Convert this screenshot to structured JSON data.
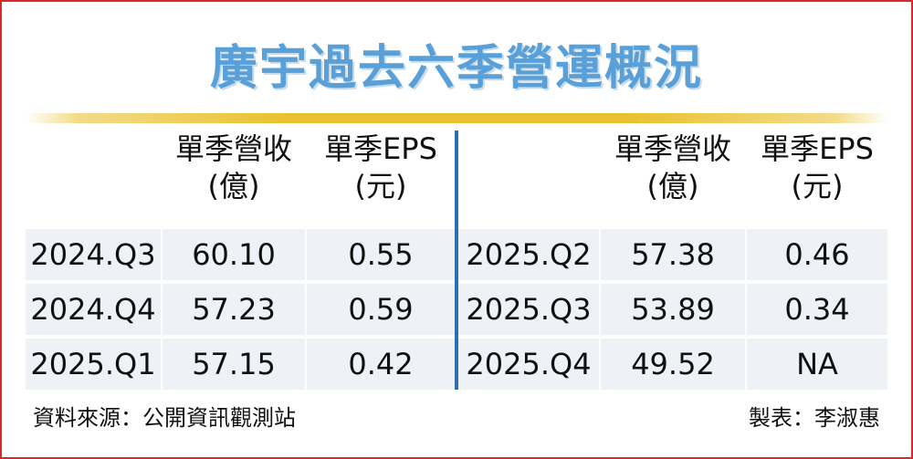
{
  "title": "廣宇過去六季營運概況",
  "headers": {
    "revenue_line1": "單季營收",
    "revenue_line2": "(億)",
    "eps_line1": "單季EPS",
    "eps_line2": "(元)"
  },
  "left_rows": [
    {
      "quarter": "2024.Q3",
      "revenue": "60.10",
      "eps": "0.55"
    },
    {
      "quarter": "2024.Q4",
      "revenue": "57.23",
      "eps": "0.59"
    },
    {
      "quarter": "2025.Q1",
      "revenue": "57.15",
      "eps": "0.42"
    }
  ],
  "right_rows": [
    {
      "quarter": "2025.Q2",
      "revenue": "57.38",
      "eps": "0.46"
    },
    {
      "quarter": "2025.Q3",
      "revenue": "53.89",
      "eps": "0.34"
    },
    {
      "quarter": "2025.Q4",
      "revenue": "49.52",
      "eps": "NA"
    }
  ],
  "footer": {
    "source": "資料來源：公開資訊觀測站",
    "credit": "製表：李淑惠"
  },
  "colors": {
    "title": "#5aa0d8",
    "frame": "#d9272e",
    "divider": "#2d6db4",
    "rule": "#e8c22e",
    "row_bg": "#eef1f6"
  }
}
